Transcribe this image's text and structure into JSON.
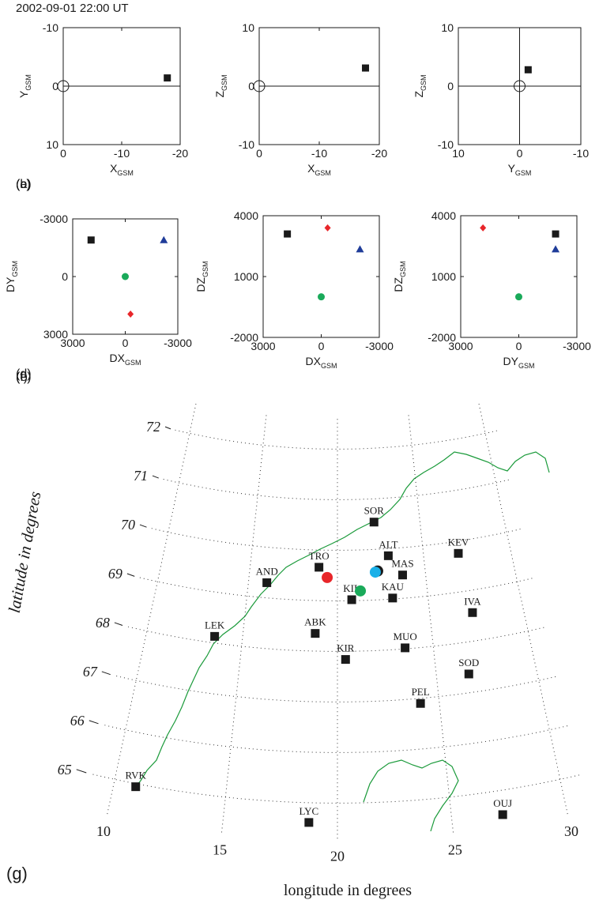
{
  "title": "2002-09-01 22:00 UT",
  "chart_data": [
    {
      "type": "scatter",
      "panel_label": "(a)",
      "xlabel": "X",
      "xlabel_sub": "GSM",
      "ylabel": "Y",
      "ylabel_sub": "GSM",
      "xlim": [
        0,
        -20
      ],
      "xticks": [
        0,
        -10,
        -20
      ],
      "ylim": [
        10,
        -10
      ],
      "yticks": [
        -10,
        0,
        10
      ],
      "crosshair": "horizontal",
      "origin_circle": true,
      "series": [
        {
          "color": "#1a1a1a",
          "marker": "square",
          "x": [
            -17.8
          ],
          "y": [
            -1.4
          ]
        }
      ]
    },
    {
      "type": "scatter",
      "panel_label": "(b)",
      "xlabel": "X",
      "xlabel_sub": "GSM",
      "ylabel": "Z",
      "ylabel_sub": "GSM",
      "xlim": [
        0,
        -20
      ],
      "xticks": [
        0,
        -10,
        -20
      ],
      "ylim": [
        -10,
        10
      ],
      "yticks": [
        -10,
        0,
        10
      ],
      "crosshair": "horizontal",
      "origin_circle": true,
      "series": [
        {
          "color": "#1a1a1a",
          "marker": "square",
          "x": [
            -17.7
          ],
          "y": [
            3.1
          ]
        }
      ]
    },
    {
      "type": "scatter",
      "panel_label": "(c)",
      "xlabel": "Y",
      "xlabel_sub": "GSM",
      "ylabel": "Z",
      "ylabel_sub": "GSM",
      "xlim": [
        10,
        -10
      ],
      "xticks": [
        10,
        0,
        -10
      ],
      "ylim": [
        -10,
        10
      ],
      "yticks": [
        -10,
        0,
        10
      ],
      "crosshair": "both",
      "origin_circle": true,
      "series": [
        {
          "color": "#1a1a1a",
          "marker": "square",
          "x": [
            -1.4
          ],
          "y": [
            2.8
          ]
        }
      ]
    },
    {
      "type": "scatter",
      "panel_label": "(d)",
      "xlabel": "DX",
      "xlabel_sub": "GSM",
      "ylabel": "DY",
      "ylabel_sub": "GSM",
      "xlim": [
        3000,
        -3000
      ],
      "xticks": [
        3000,
        0,
        -3000
      ],
      "ylim": [
        3000,
        -3000
      ],
      "yticks": [
        -3000,
        0,
        3000
      ],
      "series": [
        {
          "color": "#1a1a1a",
          "marker": "square",
          "x": [
            1950
          ],
          "y": [
            -1900
          ]
        },
        {
          "color": "#1f3c99",
          "marker": "triangle",
          "x": [
            -2200
          ],
          "y": [
            -1900
          ]
        },
        {
          "color": "#1aaa5a",
          "marker": "circle",
          "x": [
            0
          ],
          "y": [
            0
          ]
        },
        {
          "color": "#e8262a",
          "marker": "diamond",
          "x": [
            -300
          ],
          "y": [
            1950
          ]
        }
      ]
    },
    {
      "type": "scatter",
      "panel_label": "(e)",
      "xlabel": "DX",
      "xlabel_sub": "GSM",
      "ylabel": "DZ",
      "ylabel_sub": "GSM",
      "xlim": [
        3000,
        -3000
      ],
      "xticks": [
        3000,
        0,
        -3000
      ],
      "ylim": [
        -2000,
        4000
      ],
      "yticks": [
        -2000,
        1000,
        4000
      ],
      "series": [
        {
          "color": "#1a1a1a",
          "marker": "square",
          "x": [
            1750
          ],
          "y": [
            3100
          ]
        },
        {
          "color": "#1f3c99",
          "marker": "triangle",
          "x": [
            -2000
          ],
          "y": [
            2350
          ]
        },
        {
          "color": "#1aaa5a",
          "marker": "circle",
          "x": [
            0
          ],
          "y": [
            0
          ]
        },
        {
          "color": "#e8262a",
          "marker": "diamond",
          "x": [
            -330
          ],
          "y": [
            3400
          ]
        }
      ]
    },
    {
      "type": "scatter",
      "panel_label": "(f)",
      "xlabel": "DY",
      "xlabel_sub": "GSM",
      "ylabel": "DZ",
      "ylabel_sub": "GSM",
      "xlim": [
        3000,
        -3000
      ],
      "xticks": [
        3000,
        0,
        -3000
      ],
      "ylim": [
        -2000,
        4000
      ],
      "yticks": [
        -2000,
        1000,
        4000
      ],
      "series": [
        {
          "color": "#1a1a1a",
          "marker": "square",
          "x": [
            -1900
          ],
          "y": [
            3100
          ]
        },
        {
          "color": "#1f3c99",
          "marker": "triangle",
          "x": [
            -1900
          ],
          "y": [
            2350
          ]
        },
        {
          "color": "#1aaa5a",
          "marker": "circle",
          "x": [
            0
          ],
          "y": [
            0
          ]
        },
        {
          "color": "#e8262a",
          "marker": "diamond",
          "x": [
            1850
          ],
          "y": [
            3400
          ]
        }
      ]
    },
    {
      "type": "map",
      "panel_label": "(g)",
      "xlabel": "longitude in degrees",
      "ylabel": "latitude in degrees",
      "xlim": [
        9,
        31
      ],
      "xticks": [
        10,
        15,
        20,
        25,
        30
      ],
      "ylim": [
        64.3,
        72.6
      ],
      "yticks": [
        65,
        66,
        67,
        68,
        69,
        70,
        71,
        72
      ],
      "grid": true,
      "stations": {
        "color": "#1a1a1a",
        "names": [
          "SOR",
          "ALT",
          "KEV",
          "TRO",
          "MAS",
          "AND",
          "KIL",
          "KAU",
          "IVA",
          "LEK",
          "ABK",
          "MUO",
          "KIR",
          "SOD",
          "PEL",
          "RVK",
          "LYC",
          "OUJ"
        ],
        "lon": [
          22.22,
          22.96,
          27.01,
          18.94,
          23.7,
          16.03,
          20.79,
          23.05,
          27.29,
          13.54,
          18.82,
          23.53,
          20.42,
          26.63,
          24.08,
          10.98,
          18.75,
          27.23
        ],
        "lat": [
          70.54,
          69.86,
          69.76,
          69.66,
          69.46,
          69.3,
          69.02,
          69.02,
          68.56,
          68.13,
          68.35,
          68.02,
          67.84,
          67.37,
          66.9,
          64.94,
          64.61,
          64.52
        ]
      },
      "footpoints": {
        "colors": [
          "#e8262a",
          "#1aaa5a",
          "#1a1a1a",
          "#1ab0e8"
        ],
        "lon": [
          19.42,
          21.28,
          22.3,
          22.16
        ],
        "lat": [
          69.46,
          69.19,
          69.57,
          69.55
        ]
      }
    }
  ]
}
